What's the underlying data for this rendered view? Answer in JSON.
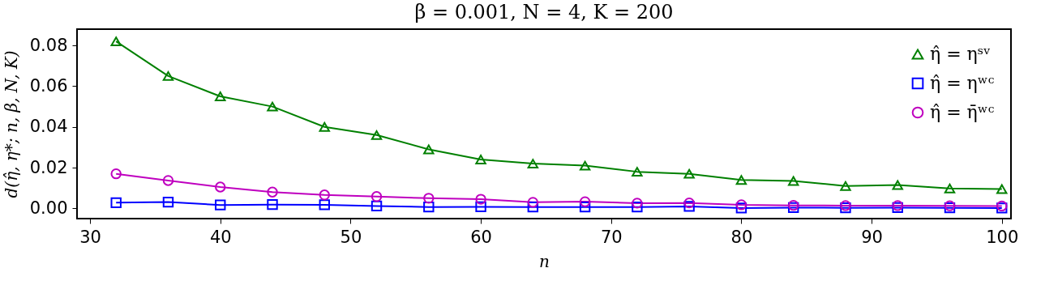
{
  "chart_data": {
    "type": "line",
    "title": "β = 0.001, N = 4, K = 200",
    "xlabel": "n",
    "ylabel": "d(η̂, η*; n, β, N, K)",
    "x": [
      32,
      36,
      40,
      44,
      48,
      52,
      56,
      60,
      64,
      68,
      72,
      76,
      80,
      84,
      88,
      92,
      96,
      100
    ],
    "xlim": [
      29,
      100.7
    ],
    "xticks": [
      30,
      40,
      50,
      60,
      70,
      80,
      90,
      100
    ],
    "ylim": [
      -0.005,
      0.088
    ],
    "yticks": [
      {
        "value": 0,
        "label": "0.00"
      },
      {
        "value": 0.02,
        "label": "0.02"
      },
      {
        "value": 0.04,
        "label": "0.04"
      },
      {
        "value": 0.06,
        "label": "0.06"
      },
      {
        "value": 0.08,
        "label": "0.08"
      }
    ],
    "grid": false,
    "legend": "top right",
    "line_style": "solid",
    "series": [
      {
        "name": "η̂ = ηˢᵛ",
        "color": "#008000",
        "marker": "triangle",
        "values": [
          0.082,
          0.065,
          0.055,
          0.05,
          0.04,
          0.036,
          0.029,
          0.024,
          0.022,
          0.021,
          0.018,
          0.017,
          0.014,
          0.0135,
          0.011,
          0.0115,
          0.0098,
          0.0095
        ]
      },
      {
        "name": "η̂ = ηʷᶜ",
        "color": "#0000ff",
        "marker": "square",
        "values": [
          0.0028,
          0.0031,
          0.0017,
          0.0019,
          0.0018,
          0.0012,
          0.0007,
          0.0008,
          0.0007,
          0.0007,
          0.0007,
          0.001,
          0.0002,
          0.0004,
          0.0003,
          0.0004,
          0.0003,
          0.0002
        ]
      },
      {
        "name": "η̂ = η̄ʷᶜ",
        "color": "#bf00bf",
        "marker": "circle",
        "values": [
          0.017,
          0.0137,
          0.0105,
          0.008,
          0.0066,
          0.0058,
          0.005,
          0.0045,
          0.003,
          0.0033,
          0.0026,
          0.0027,
          0.0018,
          0.0015,
          0.0014,
          0.0014,
          0.0013,
          0.0012
        ]
      }
    ]
  }
}
